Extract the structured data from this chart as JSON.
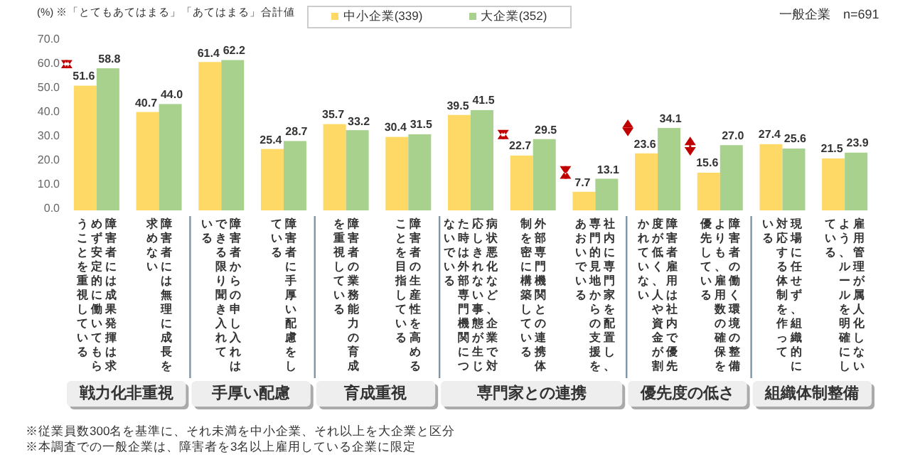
{
  "chart_data": {
    "type": "bar",
    "title": "(%) ※「とてもあてはまる」「あてはまる」合計値",
    "subtitle": "一般企業　n=691",
    "categories": [
      "障害者には成果発揮は求めず安定的に働いてもらうことを重視している",
      "障害者には無理に成長を求めない",
      "障害者からの申し入れはできる限り聞き入れている",
      "障害者に手厚い配慮をしている",
      "障害者の業務能力の育成を重視している",
      "障害者の生産性を高めることを目指している",
      "病状悪化など、企業で対応しきれない事態が生じた時は外部専門機関につないでいる",
      "外部専門機関との連携体制を密に構築している",
      "社内に専門家を配置し、専門的見地からの支援をあおいでいる",
      "障害者雇用は社内で優先度が低く、人や資金が割かれていない",
      "障害者の働く環境の整備よりも、雇用数の確保を優先している",
      "現場に任せず、組織的に対応する体制を作っている",
      "雇用管理が属人化しないよう、ルールを明確にしている"
    ],
    "series": [
      {
        "name": "中小企業(339)",
        "color": "#ffd966",
        "values": [
          51.6,
          40.7,
          61.4,
          25.4,
          35.7,
          30.4,
          39.5,
          22.7,
          7.7,
          23.6,
          15.6,
          27.4,
          21.5
        ],
        "value_labels": [
          "51.6",
          "40.7",
          "61.4",
          "25.4",
          "35.7",
          "30.4",
          "39.5",
          "22.7",
          "7.7",
          "23.6",
          "15.6",
          "27.4",
          "21.5"
        ]
      },
      {
        "name": "大企業(352)",
        "color": "#a9d18e",
        "values": [
          58.8,
          44.0,
          62.2,
          28.7,
          33.2,
          31.5,
          41.5,
          29.5,
          13.1,
          34.1,
          27.0,
          25.6,
          23.9
        ],
        "value_labels": [
          "58.8",
          "44.0",
          "62.2",
          "28.7",
          "33.2",
          "31.5",
          "41.5",
          "29.5",
          "13.1",
          "34.1",
          "27.0",
          "25.6",
          "23.9"
        ]
      }
    ],
    "ylim": [
      0,
      70
    ],
    "yticks": [
      {
        "value": 0,
        "label": "0.0"
      },
      {
        "value": 10,
        "label": "10.0"
      },
      {
        "value": 20,
        "label": "20.0"
      },
      {
        "value": 30,
        "label": "30.0"
      },
      {
        "value": 40,
        "label": "40.0"
      },
      {
        "value": 50,
        "label": "50.0"
      },
      {
        "value": 60,
        "label": "60.0"
      },
      {
        "value": 70,
        "label": "70.0"
      }
    ],
    "grid": false,
    "legend": "top",
    "annotations": [
      "戦力化非重視",
      "手厚い配慮",
      "育成重視",
      "専門家との連携",
      "優先度の低さ",
      "組織体制整備",
      "※従業員数300名を基準に、それ未満を中小企業、それ以上を大企業と区分",
      "※本調査での一般企業は、障害者を3名以上雇用している企業に限定"
    ]
  }
}
